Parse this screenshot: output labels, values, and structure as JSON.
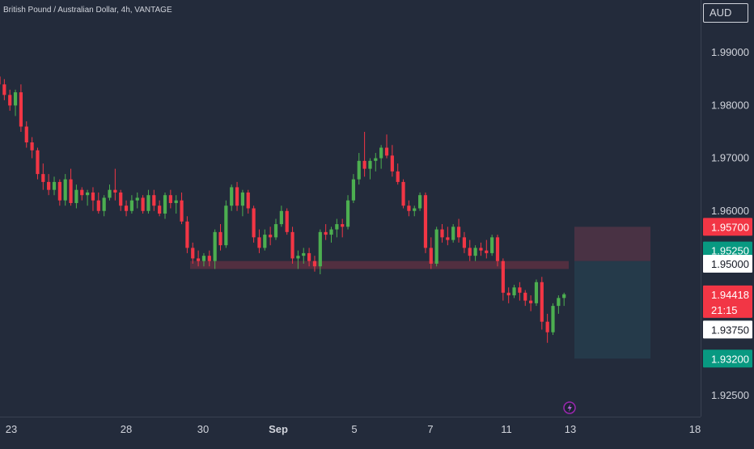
{
  "header": {
    "symbol_title": "British Pound / Australian Dollar, 4h, VANTAGE",
    "currency": "AUD"
  },
  "colors": {
    "background": "#232b3b",
    "up": "#4caf50",
    "down": "#f23645",
    "zone": "#7a3345",
    "target_zone": "#263c4c",
    "stop_zone": "#4c3344",
    "text": "#d1d4dc",
    "countdown_label": "#f23645",
    "tp_label": "#089981"
  },
  "icons": {
    "event_marker": "lightning-icon"
  },
  "chart_data": {
    "type": "candlestick",
    "x_ticks": [
      "23",
      "28",
      "30",
      "Sep",
      "5",
      "7",
      "11",
      "13",
      "18"
    ],
    "y_ticks": [
      "1.99000",
      "1.98000",
      "1.97000",
      "1.96000",
      "1.92500"
    ],
    "ylim": [
      1.921,
      2.0
    ],
    "price_labels": [
      {
        "value": 1.957,
        "text": "1.95700",
        "style": "stop"
      },
      {
        "value": 1.9525,
        "text": "1.95250",
        "style": "target"
      },
      {
        "value": 1.95,
        "text": "1.95000",
        "style": "light"
      },
      {
        "value": 1.94418,
        "text": "1.94418",
        "countdown": "21:15",
        "style": "current"
      },
      {
        "value": 1.9375,
        "text": "1.93750",
        "style": "light"
      },
      {
        "value": 1.932,
        "text": "1.93200",
        "style": "target"
      }
    ],
    "support_zone": [
      1.949,
      1.9505
    ],
    "position": {
      "entry": 1.9505,
      "stop": 1.957,
      "target": 1.932
    },
    "candles": [
      [
        1.9855,
        1.986,
        1.983,
        1.984
      ],
      [
        1.984,
        1.985,
        1.981,
        1.982
      ],
      [
        1.982,
        1.983,
        1.979,
        1.98
      ],
      [
        1.98,
        1.983,
        1.978,
        1.9825
      ],
      [
        1.9825,
        1.984,
        1.975,
        1.976
      ],
      [
        1.976,
        1.977,
        1.972,
        1.973
      ],
      [
        1.973,
        1.974,
        1.97,
        1.9715
      ],
      [
        1.9715,
        1.972,
        1.966,
        1.967
      ],
      [
        1.967,
        1.969,
        1.964,
        1.9655
      ],
      [
        1.9655,
        1.967,
        1.963,
        1.964
      ],
      [
        1.964,
        1.9665,
        1.963,
        1.9655
      ],
      [
        1.9655,
        1.966,
        1.961,
        1.962
      ],
      [
        1.962,
        1.967,
        1.961,
        1.966
      ],
      [
        1.966,
        1.968,
        1.961,
        1.9615
      ],
      [
        1.9615,
        1.965,
        1.9605,
        1.964
      ],
      [
        1.964,
        1.9645,
        1.962,
        1.963
      ],
      [
        1.963,
        1.964,
        1.961,
        1.9635
      ],
      [
        1.9635,
        1.9645,
        1.96,
        1.962
      ],
      [
        1.962,
        1.9635,
        1.9595,
        1.96
      ],
      [
        1.96,
        1.963,
        1.959,
        1.9625
      ],
      [
        1.9625,
        1.965,
        1.962,
        1.964
      ],
      [
        1.964,
        1.968,
        1.962,
        1.9635
      ],
      [
        1.9635,
        1.964,
        1.96,
        1.961
      ],
      [
        1.961,
        1.962,
        1.959,
        1.96
      ],
      [
        1.96,
        1.963,
        1.9595,
        1.962
      ],
      [
        1.962,
        1.9635,
        1.9605,
        1.9625
      ],
      [
        1.9625,
        1.963,
        1.9595,
        1.96
      ],
      [
        1.96,
        1.964,
        1.9595,
        1.963
      ],
      [
        1.963,
        1.964,
        1.96,
        1.961
      ],
      [
        1.961,
        1.962,
        1.959,
        1.9595
      ],
      [
        1.9595,
        1.9635,
        1.9585,
        1.963
      ],
      [
        1.963,
        1.964,
        1.9605,
        1.9615
      ],
      [
        1.9615,
        1.963,
        1.9595,
        1.962
      ],
      [
        1.962,
        1.9635,
        1.9575,
        1.958
      ],
      [
        1.958,
        1.959,
        1.952,
        1.953
      ],
      [
        1.953,
        1.954,
        1.95,
        1.951
      ],
      [
        1.951,
        1.9525,
        1.9495,
        1.9505
      ],
      [
        1.9505,
        1.952,
        1.9495,
        1.9515
      ],
      [
        1.9515,
        1.9525,
        1.9495,
        1.9505
      ],
      [
        1.9505,
        1.9565,
        1.949,
        1.956
      ],
      [
        1.956,
        1.9575,
        1.9525,
        1.9535
      ],
      [
        1.9535,
        1.962,
        1.953,
        1.961
      ],
      [
        1.961,
        1.965,
        1.96,
        1.9645
      ],
      [
        1.9645,
        1.9655,
        1.96,
        1.961
      ],
      [
        1.961,
        1.964,
        1.959,
        1.9635
      ],
      [
        1.9635,
        1.964,
        1.9595,
        1.9605
      ],
      [
        1.9605,
        1.961,
        1.954,
        1.955
      ],
      [
        1.955,
        1.9565,
        1.952,
        1.953
      ],
      [
        1.953,
        1.9565,
        1.9525,
        1.9555
      ],
      [
        1.9555,
        1.957,
        1.9535,
        1.955
      ],
      [
        1.955,
        1.9585,
        1.9545,
        1.9575
      ],
      [
        1.9575,
        1.961,
        1.957,
        1.96
      ],
      [
        1.96,
        1.9605,
        1.9555,
        1.956
      ],
      [
        1.956,
        1.957,
        1.95,
        1.951
      ],
      [
        1.951,
        1.9525,
        1.949,
        1.9515
      ],
      [
        1.9515,
        1.953,
        1.95,
        1.952
      ],
      [
        1.952,
        1.953,
        1.9495,
        1.9505
      ],
      [
        1.9505,
        1.9515,
        1.9485,
        1.9495
      ],
      [
        1.9495,
        1.9565,
        1.948,
        1.956
      ],
      [
        1.956,
        1.9575,
        1.9545,
        1.9555
      ],
      [
        1.9555,
        1.957,
        1.954,
        1.9565
      ],
      [
        1.9565,
        1.9585,
        1.955,
        1.9575
      ],
      [
        1.9575,
        1.9585,
        1.955,
        1.957
      ],
      [
        1.957,
        1.963,
        1.9565,
        1.962
      ],
      [
        1.962,
        1.967,
        1.9615,
        1.966
      ],
      [
        1.966,
        1.971,
        1.965,
        1.9695
      ],
      [
        1.9695,
        1.975,
        1.9665,
        1.968
      ],
      [
        1.968,
        1.97,
        1.966,
        1.9695
      ],
      [
        1.9695,
        1.971,
        1.9675,
        1.97
      ],
      [
        1.97,
        1.9725,
        1.968,
        1.972
      ],
      [
        1.972,
        1.9745,
        1.97,
        1.9705
      ],
      [
        1.9705,
        1.9725,
        1.9665,
        1.9675
      ],
      [
        1.9675,
        1.969,
        1.965,
        1.9655
      ],
      [
        1.9655,
        1.966,
        1.9605,
        1.961
      ],
      [
        1.961,
        1.962,
        1.959,
        1.96
      ],
      [
        1.96,
        1.961,
        1.959,
        1.9605
      ],
      [
        1.9605,
        1.9635,
        1.96,
        1.963
      ],
      [
        1.963,
        1.9635,
        1.952,
        1.953
      ],
      [
        1.953,
        1.955,
        1.949,
        1.95
      ],
      [
        1.95,
        1.957,
        1.9495,
        1.9565
      ],
      [
        1.9565,
        1.9575,
        1.954,
        1.955
      ],
      [
        1.955,
        1.957,
        1.9535,
        1.9545
      ],
      [
        1.9545,
        1.9575,
        1.954,
        1.957
      ],
      [
        1.957,
        1.9585,
        1.954,
        1.955
      ],
      [
        1.955,
        1.956,
        1.952,
        1.953
      ],
      [
        1.953,
        1.9545,
        1.9505,
        1.9515
      ],
      [
        1.9515,
        1.9535,
        1.9505,
        1.953
      ],
      [
        1.953,
        1.954,
        1.9515,
        1.9525
      ],
      [
        1.9525,
        1.9545,
        1.951,
        1.952
      ],
      [
        1.952,
        1.9555,
        1.9515,
        1.955
      ],
      [
        1.955,
        1.9555,
        1.9495,
        1.9505
      ],
      [
        1.9505,
        1.951,
        1.943,
        1.9445
      ],
      [
        1.9445,
        1.9455,
        1.9425,
        1.944
      ],
      [
        1.944,
        1.946,
        1.9435,
        1.9455
      ],
      [
        1.9455,
        1.9465,
        1.943,
        1.9445
      ],
      [
        1.9445,
        1.945,
        1.942,
        1.943
      ],
      [
        1.943,
        1.944,
        1.941,
        1.9425
      ],
      [
        1.9425,
        1.947,
        1.942,
        1.9465
      ],
      [
        1.9465,
        1.9475,
        1.9375,
        1.939
      ],
      [
        1.939,
        1.9405,
        1.935,
        1.937
      ],
      [
        1.937,
        1.9425,
        1.9365,
        1.942
      ],
      [
        1.942,
        1.944,
        1.9405,
        1.9435
      ],
      [
        1.9435,
        1.9445,
        1.942,
        1.9442
      ]
    ]
  }
}
